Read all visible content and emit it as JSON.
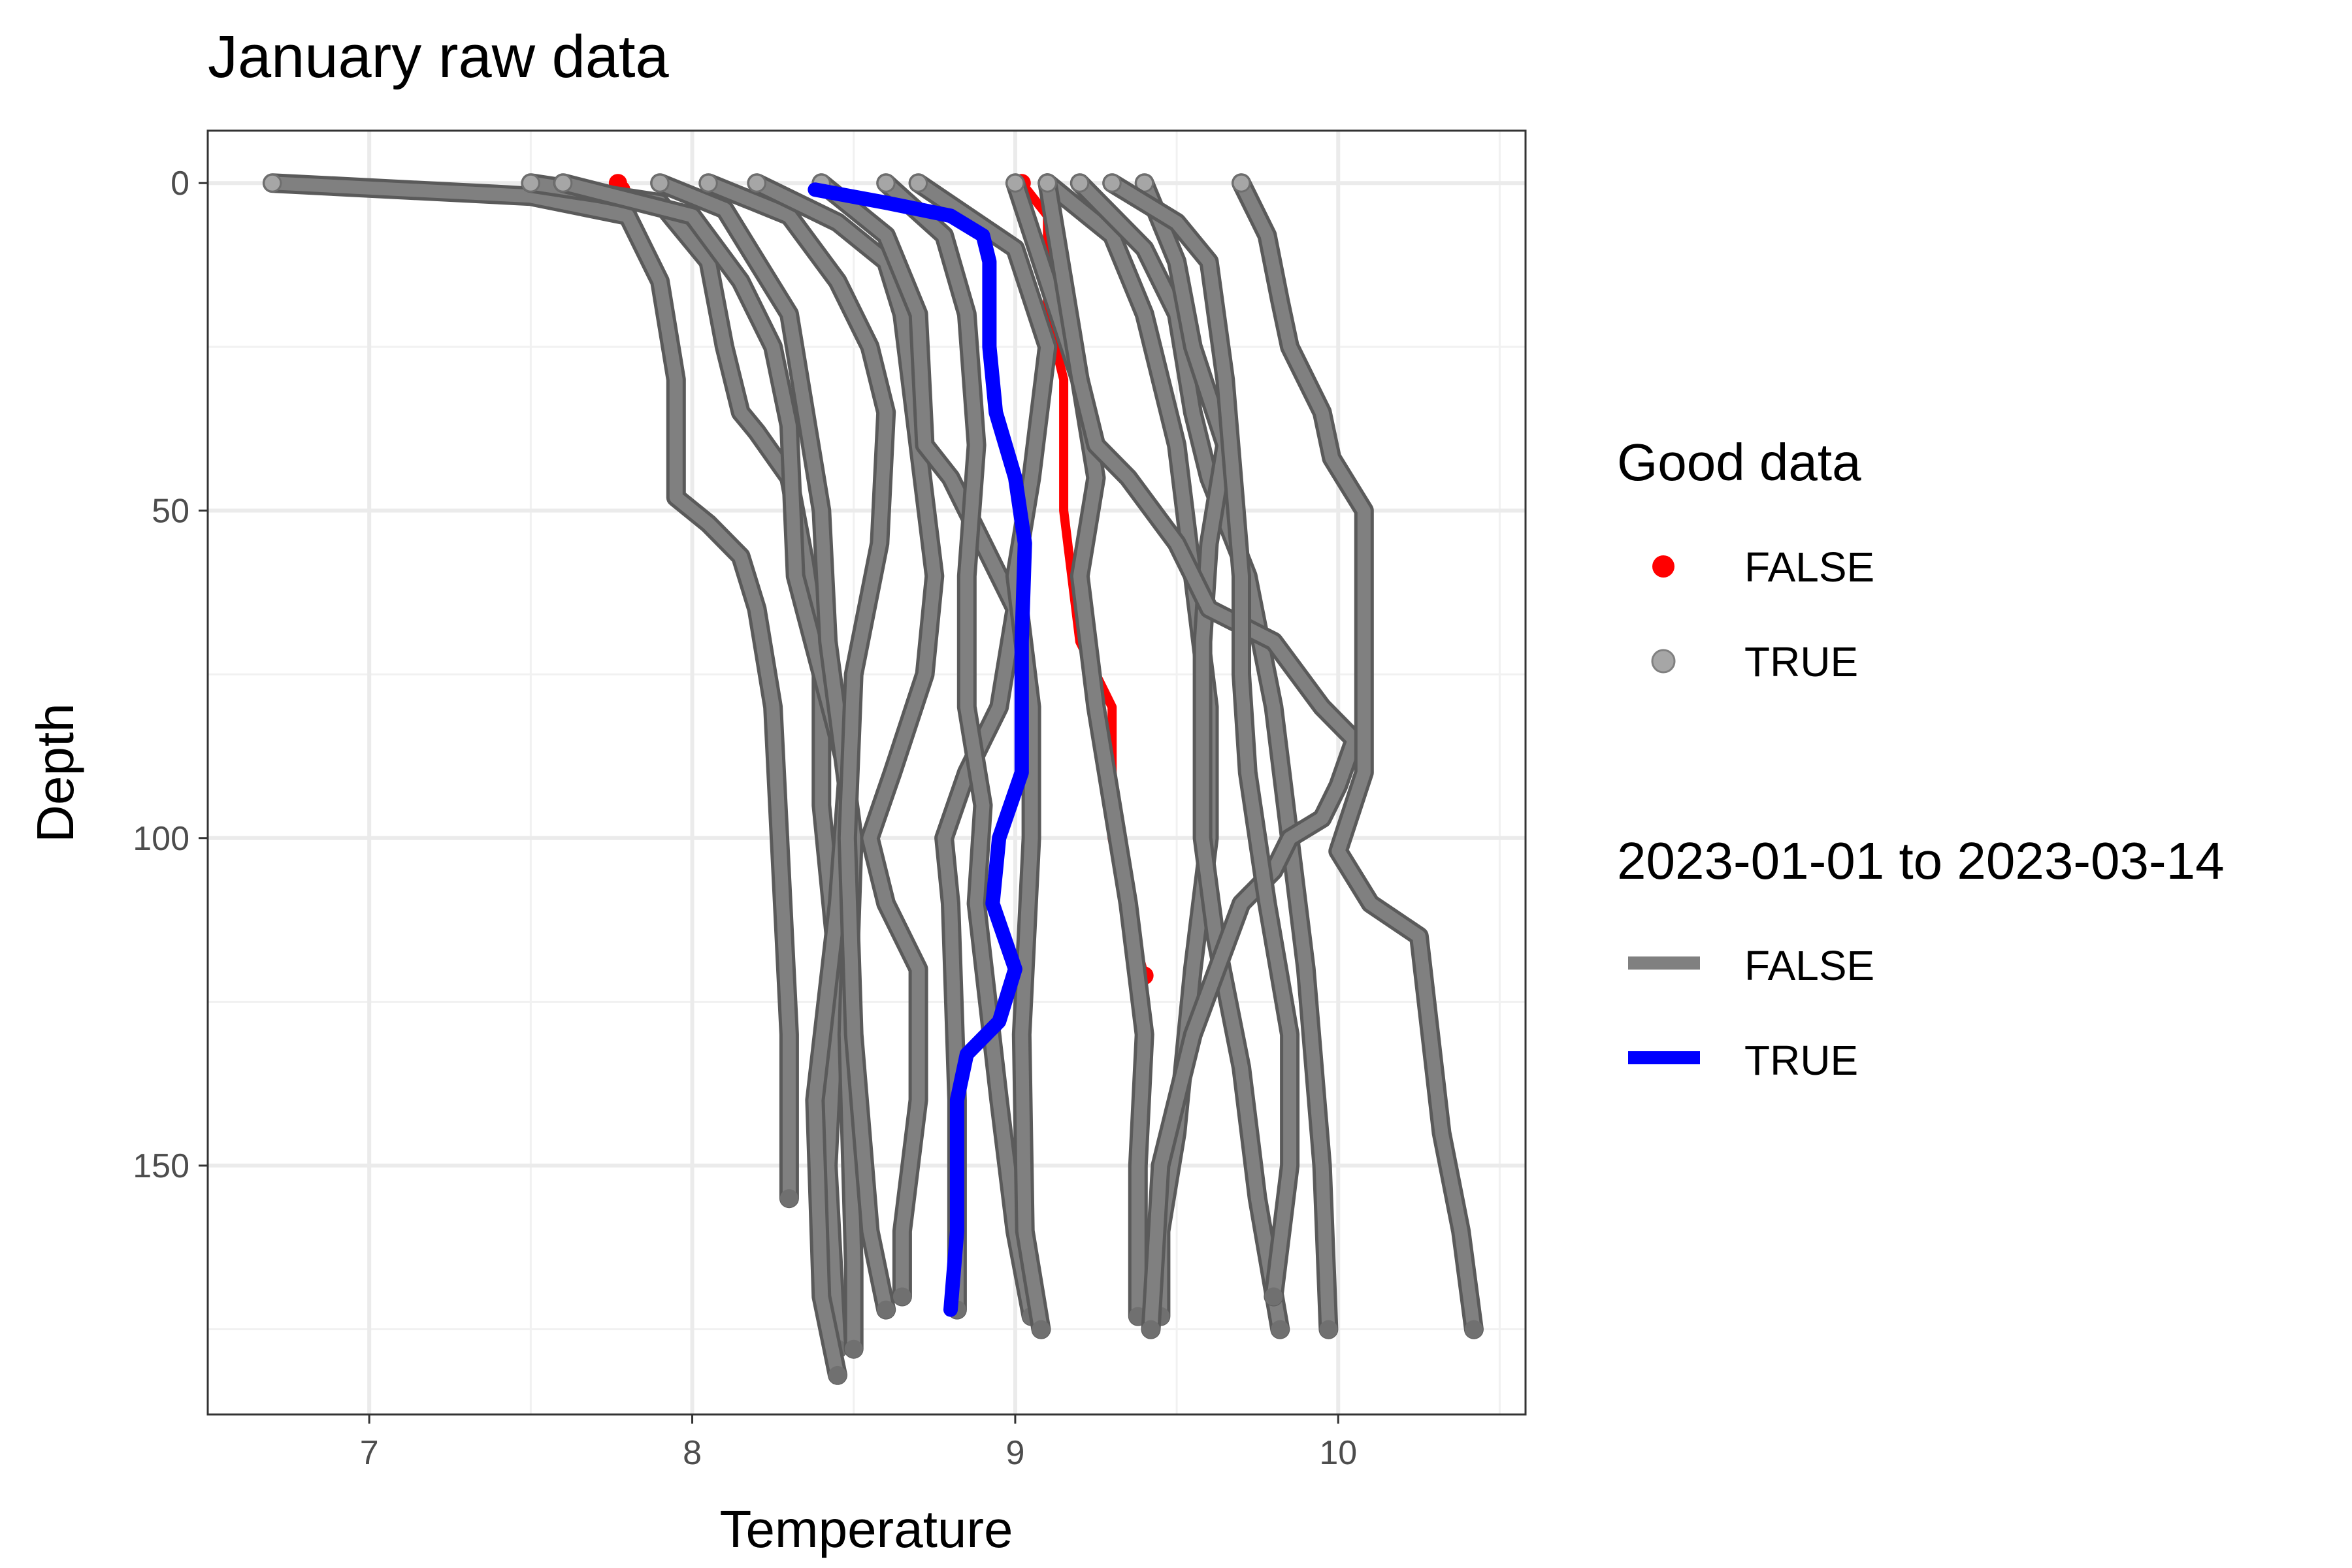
{
  "chart_data": {
    "type": "line",
    "title": "January raw data",
    "xlabel": "Temperature",
    "ylabel": "Depth",
    "xlim": [
      6.5,
      10.58
    ],
    "ylim": [
      -8,
      188
    ],
    "y_reversed": true,
    "x_ticks": [
      7,
      8,
      9,
      10
    ],
    "y_ticks": [
      0,
      50,
      100,
      150
    ],
    "grid": true,
    "legend_placement": "right",
    "legends": [
      {
        "title": "Good data",
        "kind": "point",
        "entries": [
          {
            "label": "FALSE",
            "color": "#ff0000"
          },
          {
            "label": "TRUE",
            "color": "#a6a6a6"
          }
        ]
      },
      {
        "title": "2023-01-01 to 2023-03-14",
        "kind": "line",
        "entries": [
          {
            "label": "FALSE",
            "color": "#808080"
          },
          {
            "label": "TRUE",
            "color": "#0000ff"
          }
        ]
      }
    ],
    "series": [
      {
        "group": "FALSE",
        "points": [
          [
            6.7,
            0
          ],
          [
            7.5,
            2
          ],
          [
            7.8,
            5
          ],
          [
            7.9,
            15
          ],
          [
            7.95,
            30
          ],
          [
            7.95,
            48
          ],
          [
            8.05,
            52
          ],
          [
            8.15,
            57
          ],
          [
            8.2,
            65
          ],
          [
            8.25,
            80
          ],
          [
            8.28,
            110
          ],
          [
            8.3,
            130
          ],
          [
            8.3,
            155
          ]
        ]
      },
      {
        "group": "FALSE",
        "points": [
          [
            7.5,
            0
          ],
          [
            7.9,
            3
          ],
          [
            8.05,
            12
          ],
          [
            8.1,
            25
          ],
          [
            8.15,
            35
          ],
          [
            8.2,
            38
          ],
          [
            8.3,
            45
          ],
          [
            8.35,
            58
          ],
          [
            8.4,
            75
          ],
          [
            8.4,
            95
          ],
          [
            8.45,
            120
          ],
          [
            8.42,
            150
          ],
          [
            8.45,
            178
          ]
        ]
      },
      {
        "group": "FALSE",
        "points": [
          [
            7.6,
            0
          ],
          [
            8.0,
            5
          ],
          [
            8.15,
            15
          ],
          [
            8.25,
            25
          ],
          [
            8.3,
            37
          ],
          [
            8.32,
            60
          ],
          [
            8.4,
            75
          ],
          [
            8.48,
            90
          ],
          [
            8.45,
            110
          ],
          [
            8.38,
            140
          ],
          [
            8.4,
            170
          ],
          [
            8.45,
            182
          ]
        ]
      },
      {
        "group": "FALSE",
        "points": [
          [
            7.9,
            0
          ],
          [
            8.1,
            4
          ],
          [
            8.2,
            12
          ],
          [
            8.3,
            20
          ],
          [
            8.35,
            35
          ],
          [
            8.4,
            50
          ],
          [
            8.42,
            70
          ],
          [
            8.5,
            100
          ],
          [
            8.48,
            130
          ],
          [
            8.5,
            165
          ],
          [
            8.5,
            178
          ]
        ]
      },
      {
        "group": "FALSE",
        "points": [
          [
            8.05,
            0
          ],
          [
            8.3,
            5
          ],
          [
            8.45,
            15
          ],
          [
            8.55,
            25
          ],
          [
            8.6,
            35
          ],
          [
            8.58,
            55
          ],
          [
            8.5,
            75
          ],
          [
            8.48,
            100
          ],
          [
            8.5,
            130
          ],
          [
            8.55,
            160
          ],
          [
            8.6,
            172
          ]
        ]
      },
      {
        "group": "FALSE",
        "points": [
          [
            8.2,
            0
          ],
          [
            8.45,
            6
          ],
          [
            8.6,
            12
          ],
          [
            8.65,
            20
          ],
          [
            8.7,
            40
          ],
          [
            8.75,
            60
          ],
          [
            8.72,
            75
          ],
          [
            8.62,
            90
          ],
          [
            8.55,
            100
          ],
          [
            8.6,
            110
          ],
          [
            8.7,
            120
          ],
          [
            8.7,
            140
          ],
          [
            8.65,
            160
          ],
          [
            8.65,
            170
          ]
        ]
      },
      {
        "group": "FALSE",
        "points": [
          [
            8.4,
            0
          ],
          [
            8.6,
            8
          ],
          [
            8.7,
            20
          ],
          [
            8.72,
            40
          ],
          [
            8.8,
            45
          ],
          [
            8.9,
            55
          ],
          [
            9.0,
            65
          ],
          [
            8.95,
            80
          ],
          [
            8.85,
            90
          ],
          [
            8.78,
            100
          ],
          [
            8.8,
            110
          ],
          [
            8.82,
            140
          ],
          [
            8.82,
            165
          ],
          [
            8.82,
            172
          ]
        ]
      },
      {
        "group": "FALSE",
        "points": [
          [
            8.6,
            0
          ],
          [
            8.78,
            8
          ],
          [
            8.85,
            20
          ],
          [
            8.88,
            40
          ],
          [
            8.85,
            60
          ],
          [
            8.85,
            80
          ],
          [
            8.9,
            95
          ],
          [
            8.88,
            110
          ],
          [
            8.95,
            140
          ],
          [
            9.0,
            160
          ],
          [
            9.05,
            173
          ]
        ]
      },
      {
        "group": "FALSE",
        "points": [
          [
            8.7,
            0
          ],
          [
            9.0,
            10
          ],
          [
            9.1,
            25
          ],
          [
            9.05,
            45
          ],
          [
            9.0,
            60
          ],
          [
            9.05,
            80
          ],
          [
            9.05,
            100
          ],
          [
            9.02,
            130
          ],
          [
            9.03,
            160
          ],
          [
            9.08,
            175
          ]
        ]
      },
      {
        "group": "FALSE",
        "points": [
          [
            9.0,
            0
          ],
          [
            9.1,
            15
          ],
          [
            9.2,
            30
          ],
          [
            9.25,
            45
          ],
          [
            9.2,
            60
          ],
          [
            9.25,
            80
          ],
          [
            9.3,
            95
          ],
          [
            9.35,
            110
          ],
          [
            9.4,
            130
          ],
          [
            9.38,
            150
          ],
          [
            9.38,
            173
          ]
        ]
      },
      {
        "group": "FALSE",
        "points": [
          [
            9.1,
            0
          ],
          [
            9.3,
            8
          ],
          [
            9.4,
            20
          ],
          [
            9.5,
            40
          ],
          [
            9.55,
            60
          ],
          [
            9.6,
            80
          ],
          [
            9.6,
            100
          ],
          [
            9.55,
            120
          ],
          [
            9.5,
            145
          ],
          [
            9.45,
            160
          ],
          [
            9.45,
            173
          ]
        ]
      },
      {
        "group": "FALSE",
        "points": [
          [
            9.2,
            0
          ],
          [
            9.4,
            10
          ],
          [
            9.5,
            20
          ],
          [
            9.55,
            35
          ],
          [
            9.6,
            45
          ],
          [
            9.72,
            60
          ],
          [
            9.8,
            80
          ],
          [
            9.85,
            100
          ],
          [
            9.9,
            120
          ],
          [
            9.95,
            150
          ],
          [
            9.97,
            175
          ]
        ]
      },
      {
        "group": "FALSE",
        "points": [
          [
            9.4,
            0
          ],
          [
            9.5,
            12
          ],
          [
            9.55,
            25
          ],
          [
            9.65,
            40
          ],
          [
            9.6,
            55
          ],
          [
            9.58,
            70
          ],
          [
            9.58,
            100
          ],
          [
            9.62,
            115
          ],
          [
            9.7,
            135
          ],
          [
            9.75,
            155
          ],
          [
            9.82,
            175
          ]
        ]
      },
      {
        "group": "FALSE",
        "points": [
          [
            9.1,
            0
          ],
          [
            9.15,
            15
          ],
          [
            9.2,
            30
          ],
          [
            9.25,
            40
          ],
          [
            9.35,
            45
          ],
          [
            9.5,
            55
          ],
          [
            9.6,
            65
          ],
          [
            9.8,
            70
          ],
          [
            9.95,
            80
          ],
          [
            10.05,
            85
          ],
          [
            10.0,
            92
          ],
          [
            9.95,
            97
          ],
          [
            9.85,
            100
          ],
          [
            9.8,
            105
          ],
          [
            9.7,
            110
          ],
          [
            9.55,
            130
          ],
          [
            9.45,
            150
          ],
          [
            9.42,
            175
          ]
        ]
      },
      {
        "group": "FALSE",
        "points": [
          [
            9.7,
            0
          ],
          [
            9.78,
            8
          ],
          [
            9.82,
            18
          ],
          [
            9.85,
            25
          ],
          [
            9.95,
            35
          ],
          [
            9.98,
            42
          ],
          [
            10.08,
            50
          ],
          [
            10.08,
            90
          ],
          [
            10.0,
            102
          ],
          [
            10.1,
            110
          ],
          [
            10.25,
            115
          ],
          [
            10.32,
            145
          ],
          [
            10.38,
            160
          ],
          [
            10.42,
            175
          ]
        ]
      },
      {
        "group": "FALSE",
        "points": [
          [
            9.3,
            0
          ],
          [
            9.5,
            6
          ],
          [
            9.6,
            12
          ],
          [
            9.65,
            30
          ],
          [
            9.7,
            60
          ],
          [
            9.7,
            75
          ],
          [
            9.72,
            90
          ],
          [
            9.78,
            110
          ],
          [
            9.85,
            130
          ],
          [
            9.85,
            150
          ],
          [
            9.8,
            170
          ]
        ]
      },
      {
        "group": "BAD",
        "points": [
          [
            9.02,
            0
          ],
          [
            9.1,
            5
          ],
          [
            9.1,
            20
          ],
          [
            9.15,
            30
          ],
          [
            9.15,
            50
          ],
          [
            9.2,
            70
          ],
          [
            9.3,
            80
          ],
          [
            9.3,
            100
          ],
          [
            9.35,
            112
          ],
          [
            9.4,
            121
          ]
        ]
      },
      {
        "group": "BAD",
        "points": [
          [
            7.77,
            0
          ],
          [
            7.78,
            1
          ]
        ]
      },
      {
        "group": "TRUE",
        "points": [
          [
            8.38,
            1
          ],
          [
            8.6,
            3
          ],
          [
            8.8,
            5
          ],
          [
            8.9,
            8
          ],
          [
            8.92,
            12
          ],
          [
            8.92,
            25
          ],
          [
            8.94,
            35
          ],
          [
            9.0,
            45
          ],
          [
            9.03,
            55
          ],
          [
            9.02,
            70
          ],
          [
            9.02,
            90
          ],
          [
            8.95,
            100
          ],
          [
            8.93,
            110
          ],
          [
            9.0,
            120
          ],
          [
            8.95,
            128
          ],
          [
            8.85,
            133
          ],
          [
            8.82,
            140
          ],
          [
            8.82,
            160
          ],
          [
            8.8,
            172
          ]
        ]
      }
    ]
  }
}
